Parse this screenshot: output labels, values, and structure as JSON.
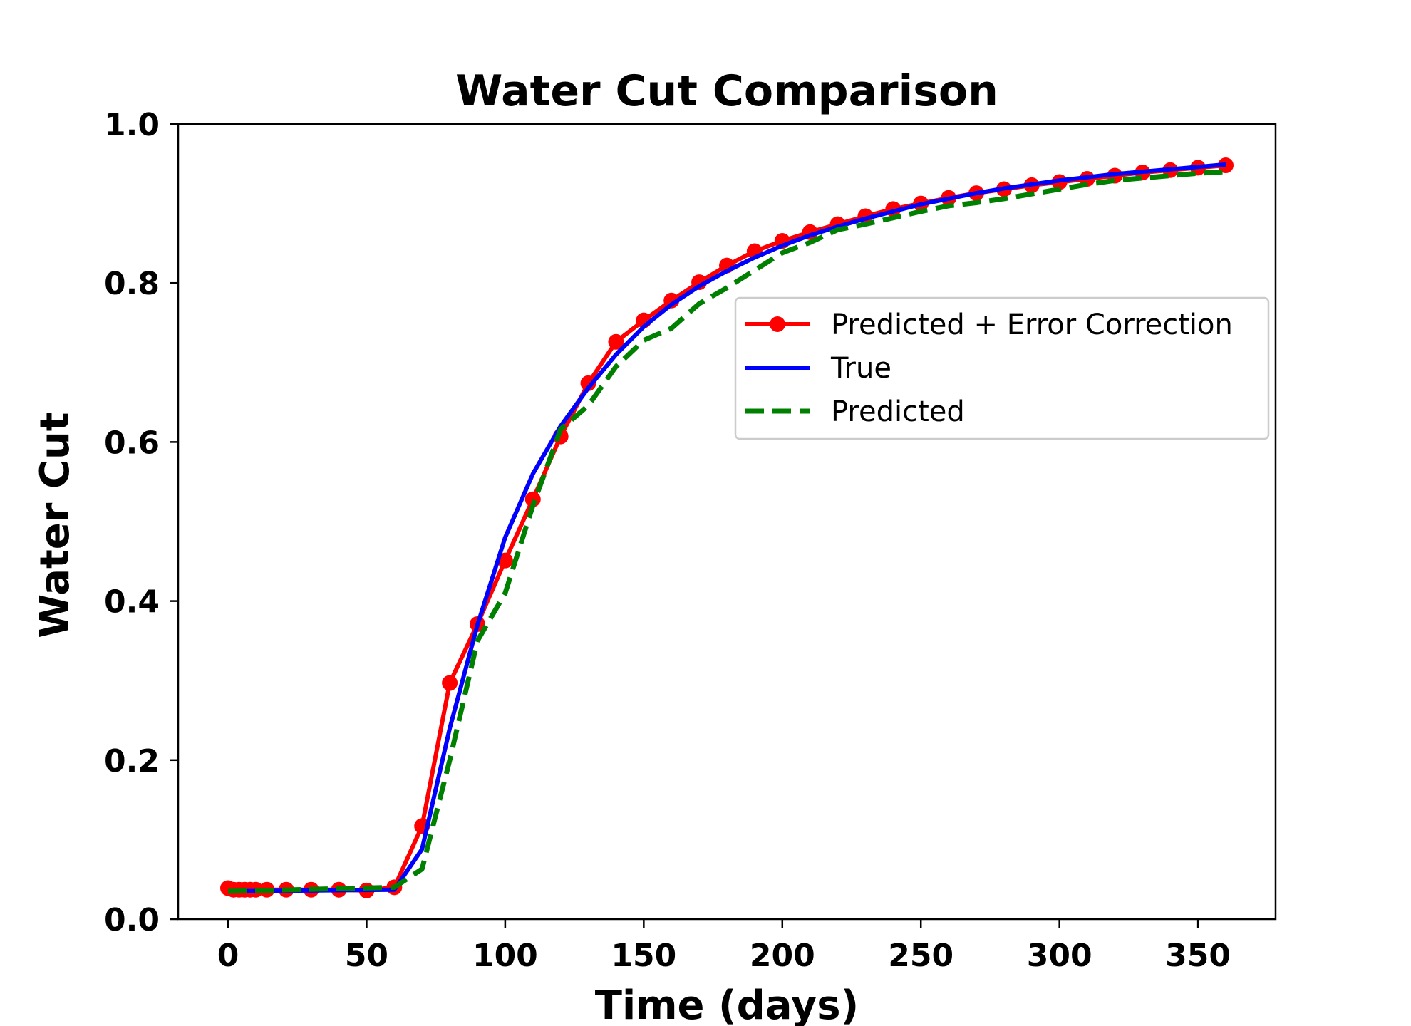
{
  "chart_data": {
    "type": "line",
    "title": "Water Cut Comparison",
    "xlabel": "Time (days)",
    "ylabel": "Water Cut",
    "xlim": [
      -18,
      378
    ],
    "ylim": [
      0.0,
      1.0
    ],
    "xticks": [
      0,
      50,
      100,
      150,
      200,
      250,
      300,
      350
    ],
    "xtick_labels": [
      "0",
      "50",
      "100",
      "150",
      "200",
      "250",
      "300",
      "350"
    ],
    "yticks": [
      0.0,
      0.2,
      0.4,
      0.6,
      0.8,
      1.0
    ],
    "ytick_labels": [
      "0.0",
      "0.2",
      "0.4",
      "0.6",
      "0.8",
      "1.0"
    ],
    "grid": false,
    "legend_position": "upper-right (center)",
    "series": [
      {
        "name": "Predicted + Error Correction",
        "color": "#ff0000",
        "style": "solid-marker",
        "x": [
          0,
          2,
          4,
          6,
          8,
          10,
          14,
          21,
          30,
          40,
          50,
          60,
          70,
          80,
          90,
          100,
          110,
          120,
          130,
          140,
          150,
          160,
          170,
          180,
          190,
          200,
          210,
          220,
          230,
          240,
          250,
          260,
          270,
          280,
          290,
          300,
          310,
          320,
          330,
          340,
          350,
          360
        ],
        "y": [
          0.039,
          0.037,
          0.037,
          0.037,
          0.037,
          0.037,
          0.037,
          0.037,
          0.037,
          0.037,
          0.036,
          0.04,
          0.117,
          0.297,
          0.371,
          0.451,
          0.528,
          0.607,
          0.674,
          0.726,
          0.753,
          0.778,
          0.801,
          0.822,
          0.84,
          0.853,
          0.864,
          0.874,
          0.884,
          0.893,
          0.9,
          0.907,
          0.913,
          0.918,
          0.923,
          0.927,
          0.931,
          0.935,
          0.939,
          0.942,
          0.945,
          0.948
        ]
      },
      {
        "name": "True",
        "color": "#0000ff",
        "style": "solid",
        "x": [
          0,
          60,
          70,
          80,
          90,
          100,
          110,
          120,
          130,
          140,
          150,
          160,
          170,
          180,
          190,
          200,
          210,
          220,
          230,
          240,
          250,
          260,
          270,
          280,
          290,
          300,
          310,
          320,
          330,
          340,
          350,
          360
        ],
        "y": [
          0.035,
          0.037,
          0.088,
          0.24,
          0.37,
          0.48,
          0.56,
          0.62,
          0.668,
          0.71,
          0.745,
          0.773,
          0.796,
          0.815,
          0.832,
          0.847,
          0.86,
          0.871,
          0.881,
          0.89,
          0.899,
          0.906,
          0.913,
          0.919,
          0.924,
          0.929,
          0.933,
          0.937,
          0.94,
          0.943,
          0.946,
          0.949
        ]
      },
      {
        "name": "Predicted",
        "color": "#008000",
        "style": "dashed",
        "x": [
          0,
          60,
          70,
          80,
          90,
          100,
          110,
          120,
          130,
          140,
          150,
          160,
          170,
          180,
          190,
          200,
          210,
          220,
          230,
          240,
          250,
          260,
          270,
          280,
          290,
          300,
          310,
          320,
          330,
          340,
          350,
          360
        ],
        "y": [
          0.035,
          0.04,
          0.063,
          0.2,
          0.35,
          0.41,
          0.52,
          0.616,
          0.646,
          0.695,
          0.728,
          0.743,
          0.774,
          0.794,
          0.816,
          0.838,
          0.851,
          0.867,
          0.874,
          0.882,
          0.89,
          0.897,
          0.901,
          0.906,
          0.912,
          0.918,
          0.924,
          0.929,
          0.932,
          0.935,
          0.938,
          0.94
        ]
      }
    ]
  }
}
